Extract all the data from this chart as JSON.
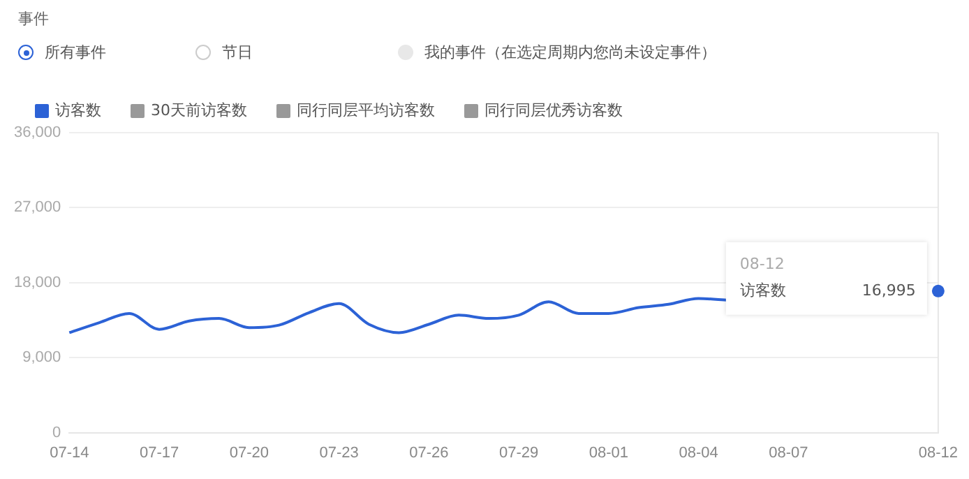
{
  "chart_data": {
    "type": "line",
    "categories": [
      "07-14",
      null,
      null,
      "07-17",
      null,
      null,
      "07-20",
      null,
      null,
      "07-23",
      null,
      null,
      "07-26",
      null,
      null,
      "07-29",
      null,
      null,
      "08-01",
      null,
      null,
      "08-04",
      null,
      null,
      "08-07",
      null,
      null,
      null,
      null,
      "08-12"
    ],
    "series": [
      {
        "name": "访客数",
        "color": "#2c62d6",
        "value_labels": [
          null,
          null,
          null,
          null,
          null,
          null,
          null,
          null,
          null,
          null,
          null,
          null,
          null,
          null,
          null,
          null,
          null,
          null,
          null,
          null,
          null,
          null,
          null,
          null,
          null,
          null,
          null,
          null,
          null,
          "16,995"
        ],
        "values": [
          12000,
          13200,
          14300,
          12400,
          13400,
          13700,
          12600,
          12900,
          14400,
          15500,
          13000,
          12000,
          13000,
          14100,
          13700,
          14100,
          15700,
          14300,
          14300,
          15000,
          15400,
          16100,
          15900,
          null,
          null,
          null,
          null,
          null,
          null,
          16995
        ]
      },
      {
        "name": "30天前访客数",
        "color": "#999999",
        "values": [
          null,
          null,
          null,
          null,
          null,
          null,
          null,
          null,
          null,
          null,
          null,
          null,
          null,
          null,
          null,
          null,
          null,
          null,
          null,
          null,
          null,
          null,
          null,
          null,
          null,
          null,
          null,
          null,
          null,
          null
        ]
      },
      {
        "name": "同行同层平均访客数",
        "color": "#999999",
        "values": [
          null,
          null,
          null,
          null,
          null,
          null,
          null,
          null,
          null,
          null,
          null,
          null,
          null,
          null,
          null,
          null,
          null,
          null,
          null,
          null,
          null,
          null,
          null,
          null,
          null,
          null,
          null,
          null,
          null,
          null
        ]
      },
      {
        "name": "同行同层优秀访客数",
        "color": "#999999",
        "values": [
          null,
          null,
          null,
          null,
          null,
          null,
          null,
          null,
          null,
          null,
          null,
          null,
          null,
          null,
          null,
          null,
          null,
          null,
          null,
          null,
          null,
          null,
          null,
          null,
          null,
          null,
          null,
          null,
          null,
          null
        ]
      }
    ],
    "ylim": [
      0,
      36000
    ],
    "yticks": [
      0,
      {
        "value": 9000,
        "label": "9,000"
      },
      {
        "value": 18000,
        "label": "18,000"
      },
      {
        "value": 27000,
        "label": "27,000"
      },
      {
        "value": 36000,
        "label": "36,000"
      }
    ],
    "grid": "y",
    "legend": "top left",
    "marker": "none",
    "line_style": "solid",
    "ref_lines": [
      {
        "axis": "x",
        "value": "08-12",
        "color": "#e6e6e6"
      }
    ],
    "annotations": [
      "事件",
      "所有事件",
      "节日",
      "我的事件（在选定周期内您尚未设定事件）",
      "08-12"
    ]
  }
}
